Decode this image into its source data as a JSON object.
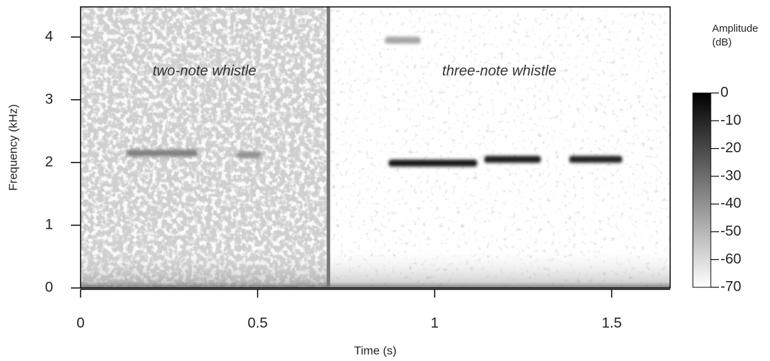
{
  "chart_data": {
    "type": "spectrogram",
    "xlabel": "Time (s)",
    "ylabel": "Frequency (kHz)",
    "xlim": [
      0,
      1.665
    ],
    "ylim": [
      0,
      4.48
    ],
    "xticks": [
      0,
      0.5,
      1,
      1.5
    ],
    "yticks": [
      0,
      1,
      2,
      3,
      4
    ],
    "segments": [
      {
        "label": "two-note whistle",
        "xlim": [
          0,
          0.7
        ]
      },
      {
        "label": "three-note whistle",
        "xlim": [
          0.7,
          1.665
        ]
      }
    ],
    "notes": [
      {
        "x": [
          0.13,
          0.33
        ],
        "y": 2.15,
        "level": -35
      },
      {
        "x": [
          0.44,
          0.51
        ],
        "y": 2.12,
        "level": -40
      },
      {
        "x": [
          0.87,
          1.12
        ],
        "y": 1.99,
        "level": -5
      },
      {
        "x": [
          1.14,
          1.3
        ],
        "y": 2.05,
        "level": -8
      },
      {
        "x": [
          1.38,
          1.53
        ],
        "y": 2.05,
        "level": -10
      },
      {
        "x": [
          0.86,
          0.96
        ],
        "y": 3.95,
        "level": -45
      }
    ],
    "colorbar_label": [
      "Amplitude",
      "(dB)"
    ],
    "clim": [
      -70,
      0
    ],
    "cticks": [
      0,
      -10,
      -20,
      -30,
      -40,
      -50,
      -60,
      -70
    ]
  }
}
